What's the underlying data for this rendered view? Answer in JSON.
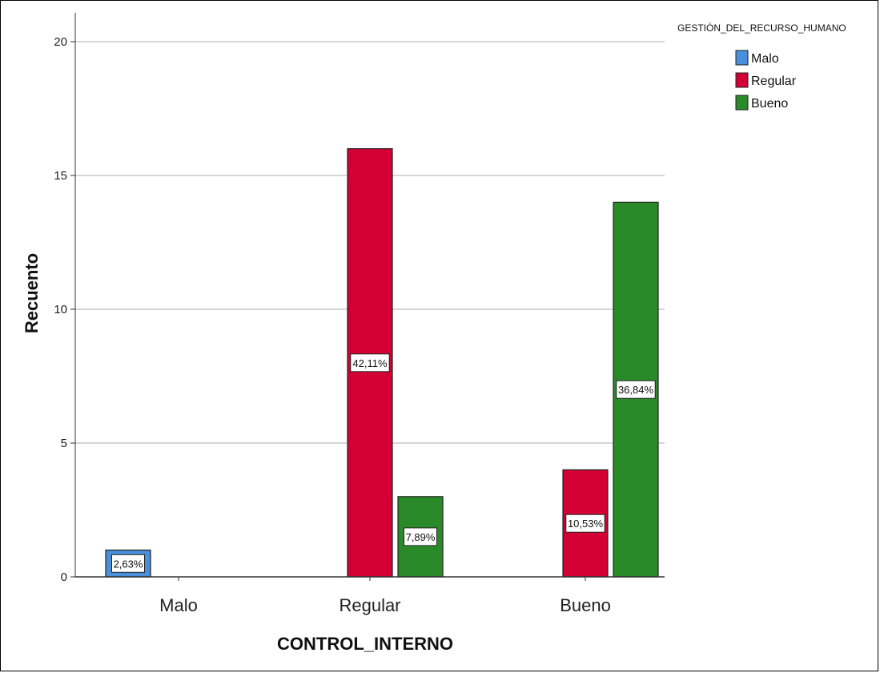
{
  "chart_data": {
    "type": "bar",
    "xlabel": "CONTROL_INTERNO",
    "ylabel": "Recuento",
    "legend_title": "GESTIÓN_DEL_RECURSO_HUMANO",
    "legend_position": "top-right",
    "categories": [
      "Malo",
      "Regular",
      "Bueno"
    ],
    "ylim": [
      0,
      21
    ],
    "yticks": [
      "0",
      "5",
      "10",
      "15",
      "20"
    ],
    "grid": true,
    "series": [
      {
        "name": "Malo",
        "color": "#4a8fdc",
        "values": [
          1,
          0,
          0
        ],
        "labels": [
          "2,63%",
          "",
          ""
        ]
      },
      {
        "name": "Regular",
        "color": "#d30035",
        "values": [
          0,
          16,
          4
        ],
        "labels": [
          "",
          "42,11%",
          "10,53%"
        ]
      },
      {
        "name": "Bueno",
        "color": "#2a8a2a",
        "values": [
          0,
          3,
          14
        ],
        "labels": [
          "",
          "7,89%",
          "36,84%"
        ]
      }
    ]
  }
}
